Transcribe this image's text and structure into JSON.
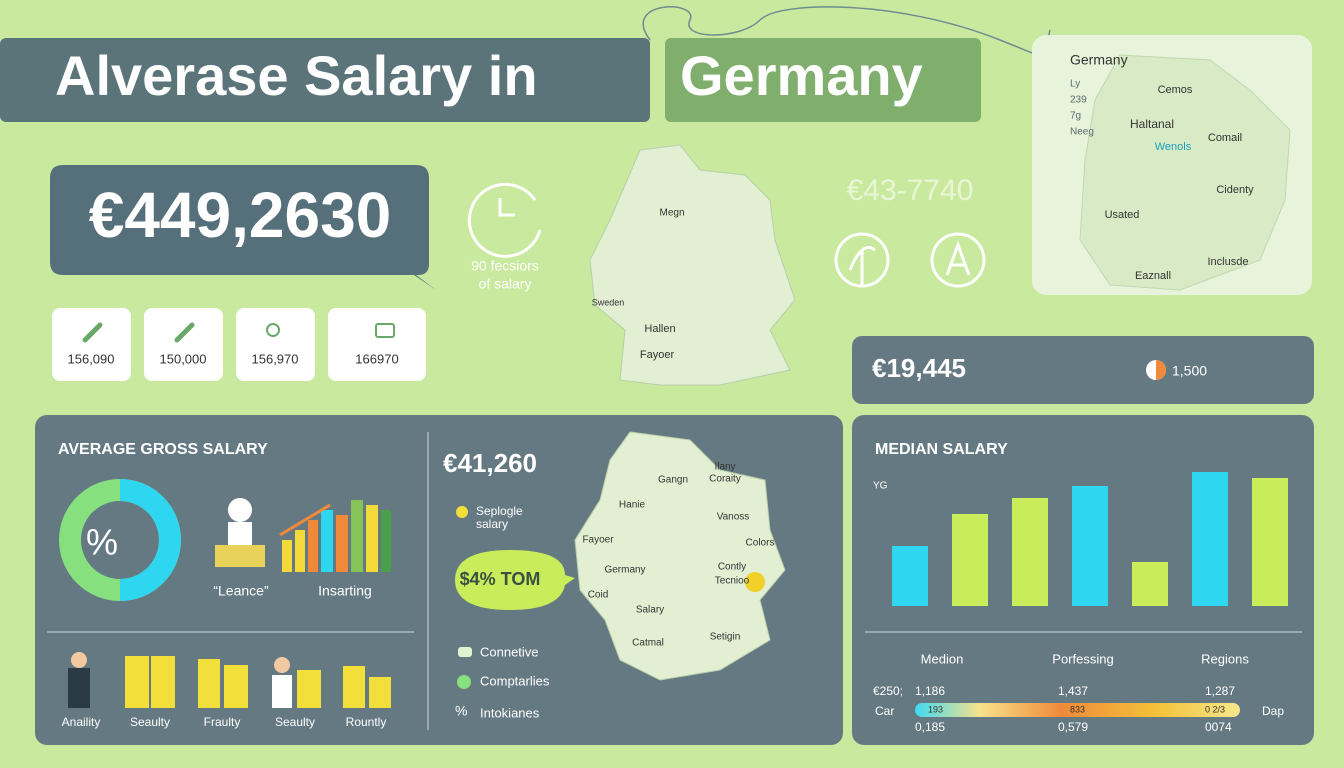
{
  "title": {
    "part1": "Alverase Salary in",
    "part2": "Germany"
  },
  "headline": {
    "value": "€449,2630",
    "caption": [
      "90 fecsiors",
      "of salary"
    ]
  },
  "cards": [
    "156,090",
    "150,000",
    "156,970",
    "166970"
  ],
  "center_map": {
    "labels": [
      "Megn",
      "Sweden",
      "Hallen",
      "Fayoer"
    ]
  },
  "range": "€43-7740",
  "map_card": {
    "title": "Germany",
    "legend": [
      "Ly",
      "239",
      "7g",
      "Neeg"
    ],
    "labels": [
      "Cemos",
      "Haltanal",
      "Wenols",
      "Comail",
      "Cidenty",
      "Usated",
      "Eaznall",
      "Inclusde"
    ]
  },
  "summary": {
    "value": "€19,445",
    "count": "1,500"
  },
  "gross": {
    "title": "AVERAGE GROSS SALARY",
    "donut_label": "%",
    "captions": [
      "“Leance”",
      "Insarting"
    ],
    "groups": [
      "Anaility",
      "Seaulty",
      "Fraulty",
      "Seaulty",
      "Rountly"
    ]
  },
  "regional": {
    "value": "€41,260",
    "legend": [
      "Seplogle",
      "salary"
    ],
    "bubble": "$4% TOM",
    "map_labels": [
      "Hanie",
      "Gangn",
      "Ilany",
      "Coraity",
      "Vanoss",
      "Fayoer",
      "Colors",
      "Germany",
      "Contly",
      "Tecnioo",
      "Coid",
      "Salary",
      "Catmal",
      "Setigin"
    ],
    "list": [
      "Connetive",
      "Comptarlies",
      "Intokianes"
    ]
  },
  "median": {
    "title": "MEDIAN SALARY",
    "chart": {
      "type": "bar",
      "y_label": "YG",
      "categories": [
        null,
        null,
        null,
        null,
        null,
        null,
        null
      ],
      "values": [
        60,
        92,
        108,
        120,
        44,
        134,
        128
      ],
      "colors": [
        "#2fd6f0",
        "#c8ec5a",
        "#c8ec5a",
        "#2fd6f0",
        "#c8ec5a",
        "#2fd6f0",
        "#c8ec5a"
      ],
      "ylim": [
        0,
        150
      ]
    },
    "columns": [
      "Medion",
      "Porfessing",
      "Regions"
    ],
    "row_label": "€250;",
    "left": "Car",
    "right": "Dap",
    "top_values": [
      "1,186",
      "1,437",
      "1,287"
    ],
    "bar_values": [
      "193",
      "833",
      "0 2/3"
    ],
    "bottom_values": [
      "0,185",
      "0,579",
      "0074"
    ]
  }
}
